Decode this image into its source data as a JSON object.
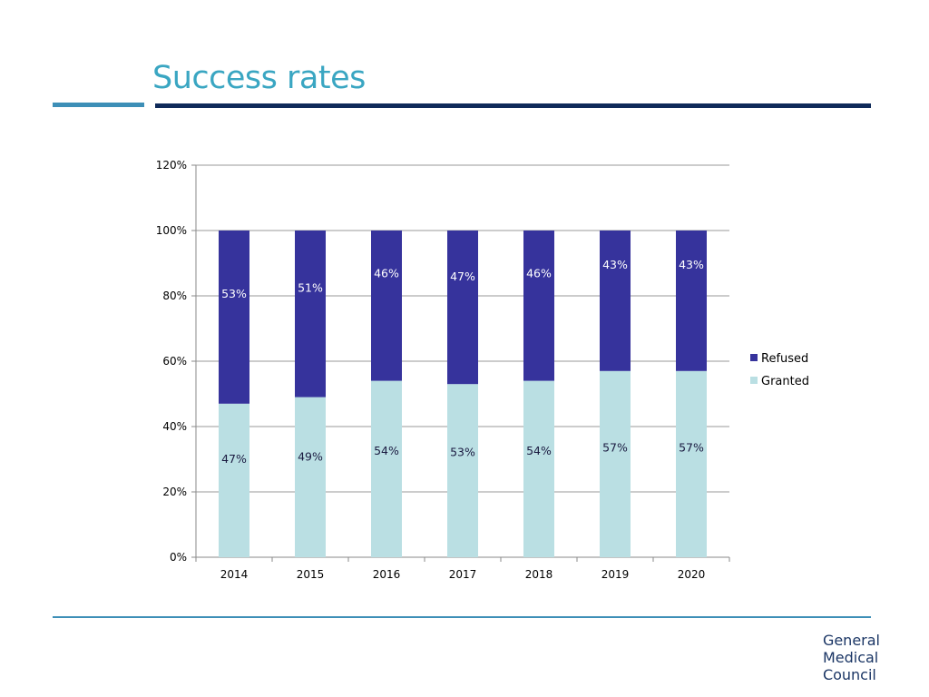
{
  "slide": {
    "title": "Success rates"
  },
  "logo": {
    "lines": [
      "General",
      "Medical",
      "Council"
    ]
  },
  "colors": {
    "refused": "#36339c",
    "granted": "#badfe3",
    "title": "#3aa6c2",
    "label_on_refused": "#ffffff",
    "label_on_granted": "#1a1a40"
  },
  "chart_data": {
    "type": "bar",
    "stacked": true,
    "categories": [
      "2014",
      "2015",
      "2016",
      "2017",
      "2018",
      "2019",
      "2020"
    ],
    "series": [
      {
        "name": "Granted",
        "values": [
          47,
          49,
          54,
          53,
          54,
          57,
          57
        ],
        "labels": [
          "47%",
          "49%",
          "54%",
          "53%",
          "54%",
          "57%",
          "57%"
        ]
      },
      {
        "name": "Refused",
        "values": [
          53,
          51,
          46,
          47,
          46,
          43,
          43
        ],
        "labels": [
          "53%",
          "51%",
          "46%",
          "47%",
          "46%",
          "43%",
          "43%"
        ]
      }
    ],
    "yticks": [
      "0%",
      "20%",
      "40%",
      "60%",
      "80%",
      "100%",
      "120%"
    ],
    "ylim": [
      0,
      120
    ],
    "title": "",
    "xlabel": "",
    "ylabel": "",
    "grid": true,
    "legend": "right",
    "legend_order": [
      "Refused",
      "Granted"
    ]
  }
}
